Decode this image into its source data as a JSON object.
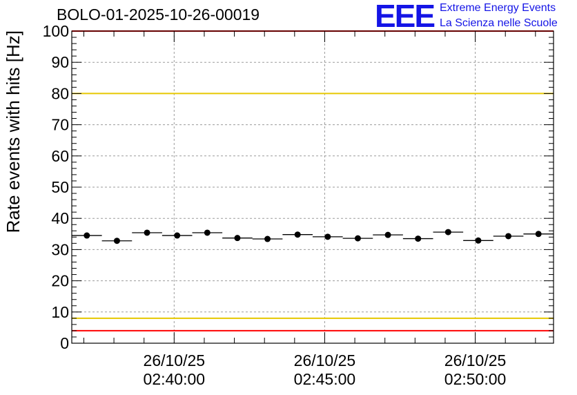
{
  "chart_data": {
    "type": "scatter",
    "title": "BOLO-01-2025-10-26-00019",
    "ylabel": "Rate events with hits [Hz]",
    "xlabel": "",
    "ylim": [
      0,
      100
    ],
    "yticks": [
      0,
      10,
      20,
      30,
      40,
      50,
      60,
      70,
      80,
      90,
      100
    ],
    "x_range_minutes": [
      -3.4,
      12.6
    ],
    "x_ticks": [
      {
        "minute": 0,
        "date": "26/10/25",
        "time": "02:40:00"
      },
      {
        "minute": 5,
        "date": "26/10/25",
        "time": "02:45:00"
      },
      {
        "minute": 10,
        "date": "26/10/25",
        "time": "02:50:00"
      }
    ],
    "bin_width_minutes": 1,
    "points": [
      {
        "x": -2.9,
        "y": 34.5
      },
      {
        "x": -1.9,
        "y": 32.8
      },
      {
        "x": -0.9,
        "y": 35.4
      },
      {
        "x": 0.1,
        "y": 34.5
      },
      {
        "x": 1.1,
        "y": 35.4
      },
      {
        "x": 2.1,
        "y": 33.7
      },
      {
        "x": 3.1,
        "y": 33.4
      },
      {
        "x": 4.1,
        "y": 34.8
      },
      {
        "x": 5.1,
        "y": 34.1
      },
      {
        "x": 6.1,
        "y": 33.6
      },
      {
        "x": 7.1,
        "y": 34.7
      },
      {
        "x": 8.1,
        "y": 33.5
      },
      {
        "x": 9.1,
        "y": 35.6
      },
      {
        "x": 10.1,
        "y": 32.9
      },
      {
        "x": 11.1,
        "y": 34.3
      },
      {
        "x": 12.1,
        "y": 35.0
      }
    ],
    "reference_lines": [
      {
        "y": 100,
        "color": "#ff0000"
      },
      {
        "y": 80,
        "color": "#e6c800"
      },
      {
        "y": 8,
        "color": "#e6c800"
      },
      {
        "y": 4,
        "color": "#ff0000"
      }
    ],
    "grid": true
  },
  "logo": {
    "mark": "EEE",
    "line1": "Extreme Energy Events",
    "line2": "La Scienza nelle Scuole",
    "color": "#1414e6"
  }
}
